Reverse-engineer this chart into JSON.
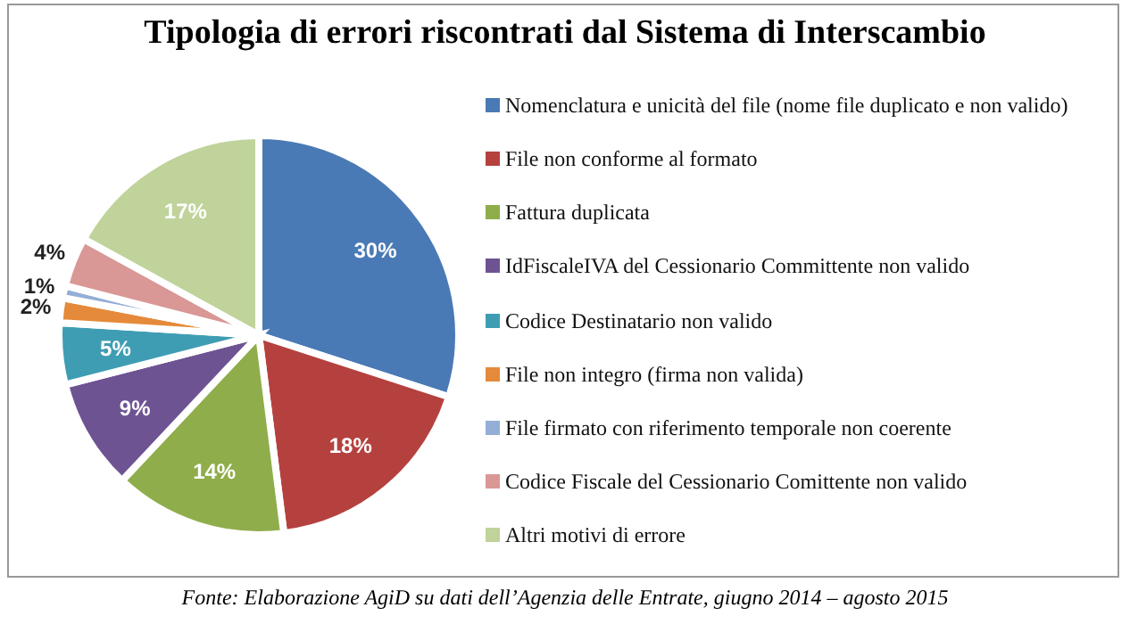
{
  "chart_data": {
    "type": "pie",
    "title": "Tipologia di errori riscontrati dal Sistema di Interscambio",
    "categories": [
      "Nomenclatura e unicità del file (nome file duplicato e non valido)",
      "File non conforme al formato",
      "Fattura duplicata",
      "IdFiscaleIVA del Cessionario Committente non valido",
      "Codice Destinatario non valido",
      "File non integro (firma non valida)",
      "File firmato con riferimento temporale non coerente",
      "Codice Fiscale del Cessionario Comittente non valido",
      "Altri motivi di errore"
    ],
    "values": [
      30,
      18,
      14,
      9,
      5,
      2,
      1,
      4,
      17
    ],
    "value_labels": [
      "30%",
      "18%",
      "14%",
      "9%",
      "5%",
      "2%",
      "1%",
      "4%",
      "17%"
    ],
    "colors": [
      "#4a7ab5",
      "#b5413f",
      "#8fad4a",
      "#6e5393",
      "#3f9db3",
      "#e58a3a",
      "#94aed6",
      "#d99795",
      "#bfd39a"
    ],
    "legend": "right",
    "annotations": [
      "Fonte: Elaborazione AgiD su dati dell’Agenzia delle Entrate, giugno 2014 – agosto 2015"
    ]
  }
}
